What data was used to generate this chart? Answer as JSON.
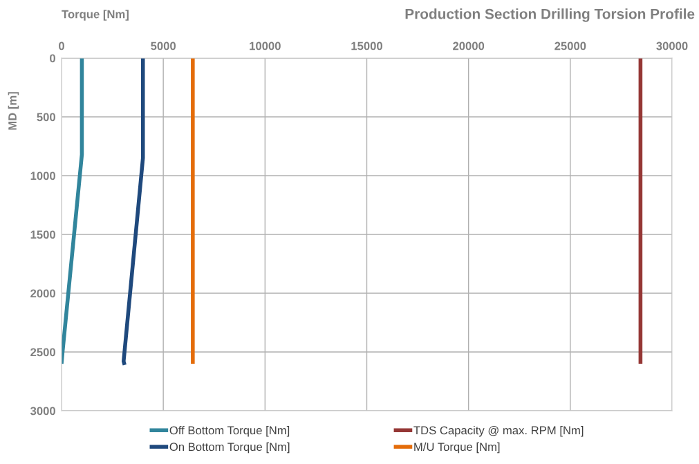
{
  "chart_data": {
    "type": "line",
    "title": "Production Section Drilling Torsion Profile",
    "xlabel": "Torque [Nm]",
    "ylabel": "MD [m]",
    "xlim": [
      0,
      30000
    ],
    "xticks": [
      0,
      5000,
      10000,
      15000,
      20000,
      25000,
      30000
    ],
    "ylim": [
      3000,
      0
    ],
    "yticks": [
      0,
      500,
      1000,
      1500,
      2000,
      2500,
      3000
    ],
    "grid": true,
    "legend": "bottom",
    "series": [
      {
        "name": "Off Bottom Torque [Nm]",
        "color": "#31859c",
        "x": [
          1000,
          1000,
          50,
          0
        ],
        "values": [
          0,
          820,
          2500,
          2600
        ]
      },
      {
        "name": "On Bottom Torque [Nm]",
        "color": "#1f497d",
        "x": [
          4000,
          4000,
          3050,
          3100
        ],
        "values": [
          0,
          850,
          2580,
          2610
        ]
      },
      {
        "name": "TDS Capacity @ max. RPM [Nm]",
        "color": "#953735",
        "x": [
          28450,
          28450
        ],
        "values": [
          0,
          2600
        ]
      },
      {
        "name": "M/U Torque [Nm]",
        "color": "#e46c0a",
        "x": [
          6450,
          6450
        ],
        "values": [
          0,
          2600
        ]
      }
    ]
  }
}
